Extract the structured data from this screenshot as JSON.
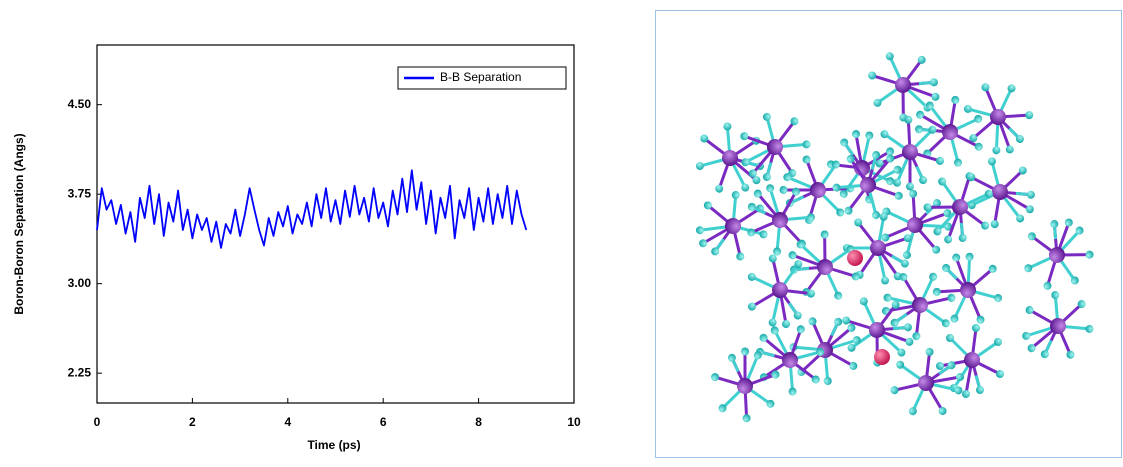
{
  "chart_data": {
    "type": "line",
    "xlabel": "Time (ps)",
    "ylabel": "Boron-Boron Separation (Angs)",
    "x": [
      0,
      0.1,
      0.2,
      0.3,
      0.4,
      0.5,
      0.6,
      0.7,
      0.8,
      0.9,
      1,
      1.1,
      1.2,
      1.3,
      1.4,
      1.5,
      1.6,
      1.7,
      1.8,
      1.9,
      2,
      2.1,
      2.2,
      2.3,
      2.4,
      2.5,
      2.6,
      2.7,
      2.8,
      2.9,
      3,
      3.1,
      3.2,
      3.3,
      3.4,
      3.5,
      3.6,
      3.7,
      3.8,
      3.9,
      4,
      4.1,
      4.2,
      4.3,
      4.4,
      4.5,
      4.6,
      4.7,
      4.8,
      4.9,
      5,
      5.1,
      5.2,
      5.3,
      5.4,
      5.5,
      5.6,
      5.7,
      5.8,
      5.9,
      6,
      6.1,
      6.2,
      6.3,
      6.4,
      6.5,
      6.6,
      6.7,
      6.8,
      6.9,
      7,
      7.1,
      7.2,
      7.3,
      7.4,
      7.5,
      7.6,
      7.7,
      7.8,
      7.9,
      8,
      8.1,
      8.2,
      8.3,
      8.4,
      8.5,
      8.6,
      8.7,
      8.8,
      8.9,
      9
    ],
    "series": [
      {
        "name": "B-B Separation",
        "color": "#0000ff",
        "values": [
          3.45,
          3.8,
          3.62,
          3.7,
          3.5,
          3.66,
          3.42,
          3.6,
          3.35,
          3.72,
          3.55,
          3.82,
          3.5,
          3.75,
          3.4,
          3.68,
          3.52,
          3.78,
          3.45,
          3.62,
          3.38,
          3.58,
          3.45,
          3.55,
          3.35,
          3.52,
          3.3,
          3.5,
          3.42,
          3.62,
          3.4,
          3.58,
          3.8,
          3.62,
          3.45,
          3.32,
          3.55,
          3.4,
          3.6,
          3.48,
          3.65,
          3.42,
          3.58,
          3.5,
          3.68,
          3.48,
          3.75,
          3.55,
          3.8,
          3.52,
          3.7,
          3.5,
          3.78,
          3.56,
          3.82,
          3.58,
          3.72,
          3.52,
          3.8,
          3.55,
          3.68,
          3.48,
          3.78,
          3.58,
          3.88,
          3.6,
          3.95,
          3.62,
          3.85,
          3.5,
          3.78,
          3.42,
          3.72,
          3.55,
          3.82,
          3.38,
          3.7,
          3.55,
          3.8,
          3.45,
          3.72,
          3.52,
          3.8,
          3.5,
          3.75,
          3.55,
          3.82,
          3.5,
          3.78,
          3.58,
          3.45
        ]
      }
    ],
    "xlim": [
      0,
      10
    ],
    "xticks": [
      0,
      2,
      4,
      6,
      8,
      10
    ],
    "ylim": [
      2.0,
      5.0
    ],
    "yticks": [
      2.25,
      {
        "value": 3,
        "label": "3.00"
      },
      3.75,
      {
        "value": 4.5,
        "label": "4.50"
      }
    ],
    "grid": false,
    "legend": "upper right"
  }
}
